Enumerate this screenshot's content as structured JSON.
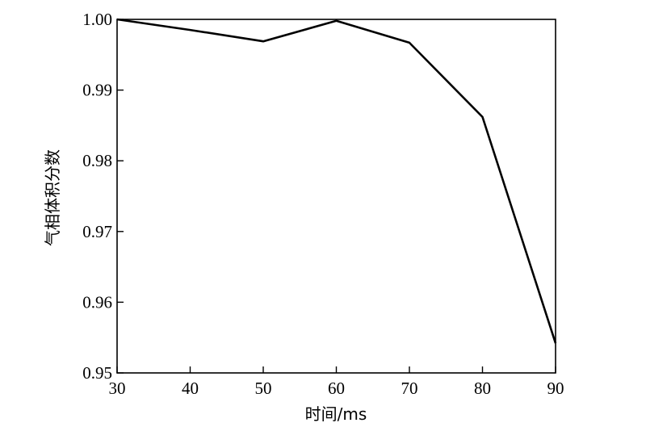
{
  "chart_data": {
    "type": "line",
    "xlabel": "时间/ms",
    "ylabel": "气相体积分数",
    "xlim": [
      30,
      90
    ],
    "ylim": [
      0.95,
      1.0
    ],
    "x_ticks": [
      "30",
      "40",
      "50",
      "60",
      "70",
      "80",
      "90"
    ],
    "y_ticks": [
      "0.95",
      "0.96",
      "0.97",
      "0.98",
      "0.99",
      "1.00"
    ],
    "grid": false,
    "x": [
      30,
      40,
      50,
      60,
      70,
      80,
      90
    ],
    "series": [
      {
        "values": [
          1.0,
          0.9985,
          0.9969,
          0.9998,
          0.9967,
          0.9862,
          0.9542
        ]
      }
    ]
  }
}
